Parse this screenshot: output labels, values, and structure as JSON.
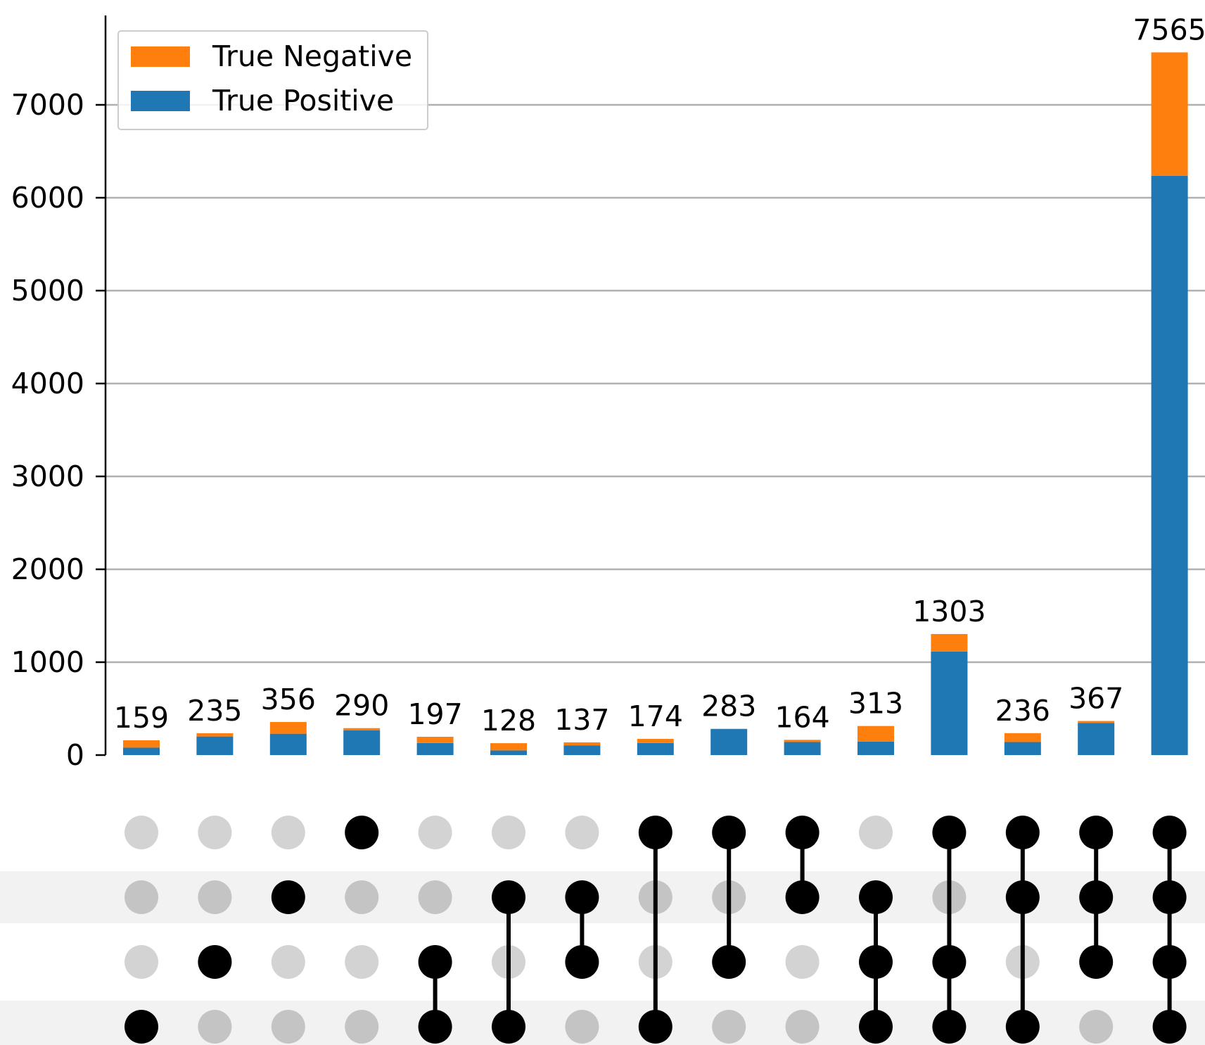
{
  "chart_data": {
    "type": "upset",
    "legend": {
      "placement": "top-left",
      "entries": [
        {
          "label": "True Negative",
          "color": "#ff7f0e"
        },
        {
          "label": "True Positive",
          "color": "#1f77b4"
        }
      ]
    },
    "y_ticks": [
      "0",
      "1000",
      "2000",
      "3000",
      "4000",
      "5000",
      "6000",
      "7000"
    ],
    "ylim": [
      0,
      7900
    ],
    "grid": true,
    "series": [
      {
        "name": "True Positive",
        "color": "#1f77b4",
        "values": [
          80,
          200,
          230,
          265,
          130,
          50,
          105,
          130,
          280,
          140,
          145,
          1115,
          140,
          345,
          6235
        ]
      },
      {
        "name": "True Negative",
        "color": "#ff7f0e",
        "values": [
          79,
          35,
          126,
          25,
          67,
          78,
          32,
          44,
          3,
          24,
          168,
          188,
          96,
          22,
          1330
        ]
      }
    ],
    "totals": [
      159,
      235,
      356,
      290,
      197,
      128,
      137,
      174,
      283,
      164,
      313,
      1303,
      236,
      367,
      7565
    ],
    "total_labels": [
      "159",
      "235",
      "356",
      "290",
      "197",
      "128",
      "137",
      "174",
      "283",
      "164",
      "313",
      "1303",
      "236",
      "367",
      "7565"
    ],
    "membership": [
      [
        3
      ],
      [
        2
      ],
      [
        1
      ],
      [
        0
      ],
      [
        2,
        3
      ],
      [
        1,
        3
      ],
      [
        1,
        2
      ],
      [
        0,
        3
      ],
      [
        0,
        2
      ],
      [
        0,
        1
      ],
      [
        1,
        2,
        3
      ],
      [
        0,
        2,
        3
      ],
      [
        0,
        1,
        3
      ],
      [
        0,
        1,
        2
      ],
      [
        0,
        1,
        2,
        3
      ]
    ],
    "set_rows": 4,
    "colors": {
      "active_dot": "#000000",
      "inactive_dot_light_row": "#d3d3d3",
      "inactive_dot_shaded_row": "#c4c4c4",
      "row_shade": "#f2f2f2",
      "grid": "#b0b0b0"
    }
  }
}
